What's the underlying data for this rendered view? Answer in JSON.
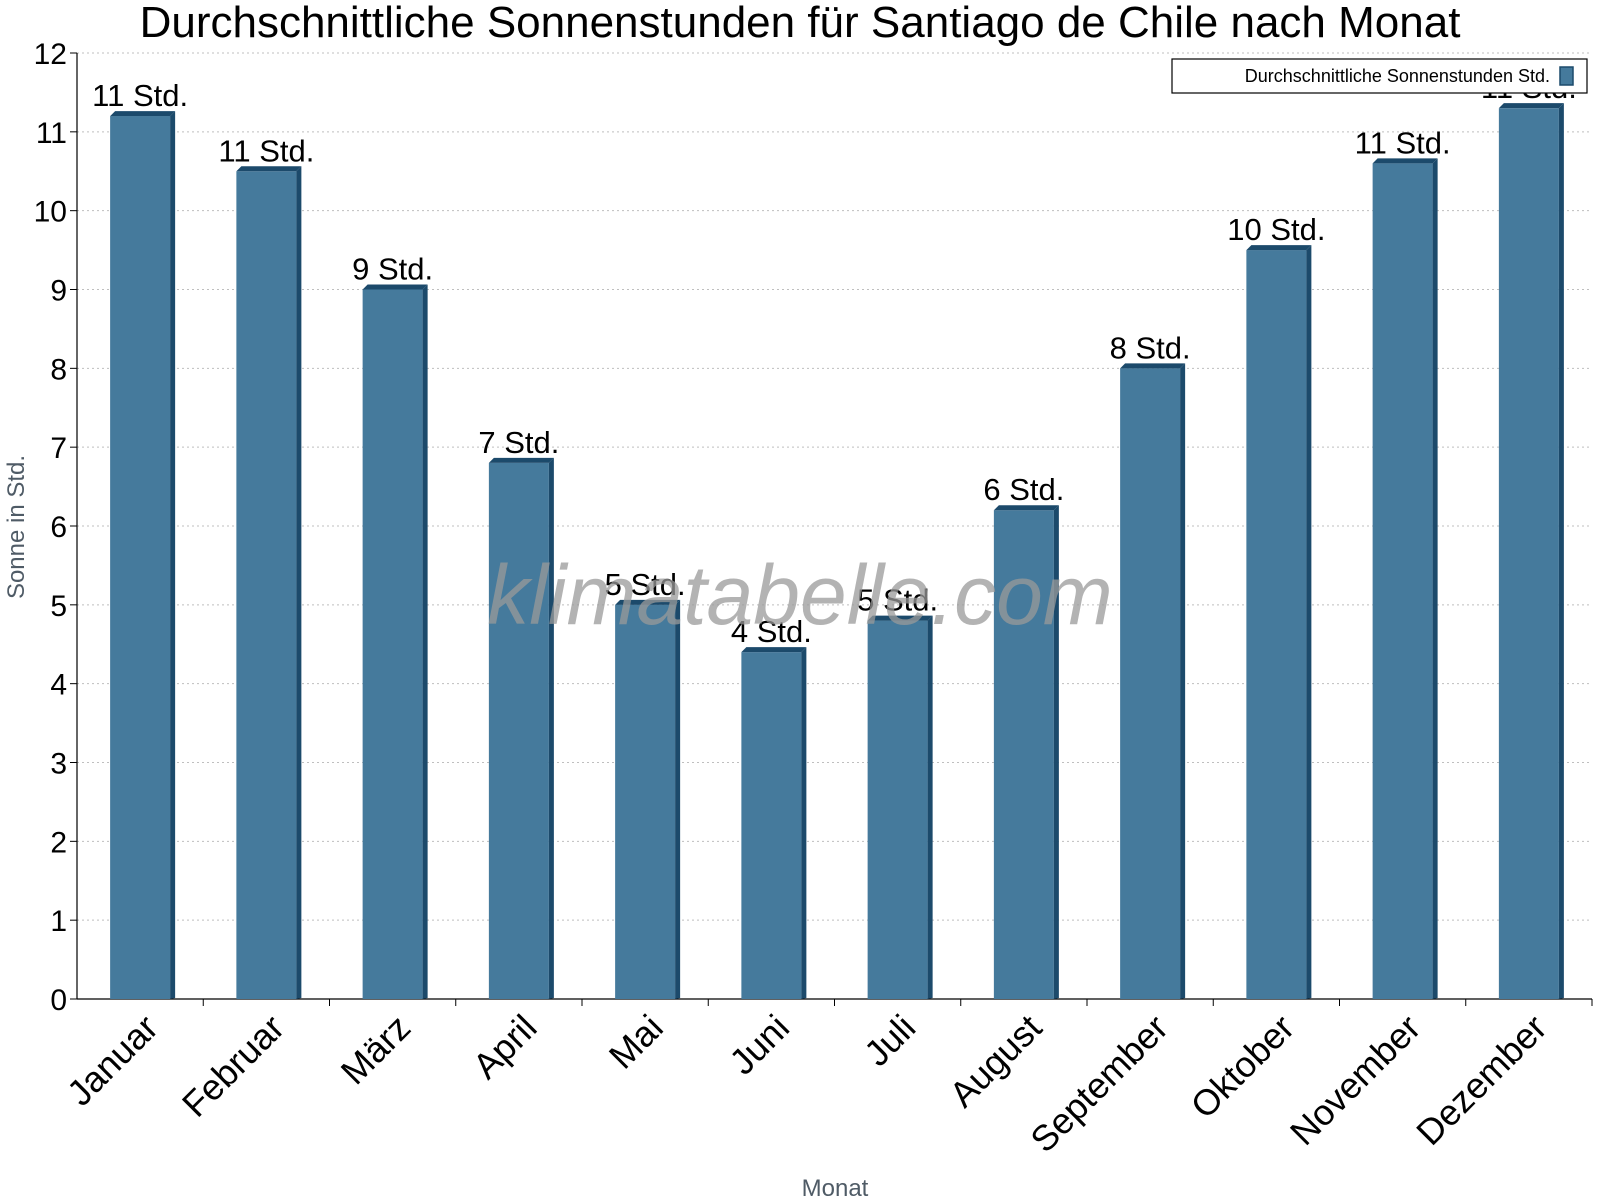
{
  "chart_data": {
    "type": "bar",
    "title": "Durchschnittliche Sonnenstunden für Santiago de Chile nach Monat",
    "xlabel": "Monat",
    "ylabel": "Sonne in Std.",
    "categories": [
      "Januar",
      "Februar",
      "März",
      "April",
      "Mai",
      "Juni",
      "Juli",
      "August",
      "September",
      "Oktober",
      "November",
      "Dezember"
    ],
    "series": [
      {
        "name": "Durchschnittliche Sonnenstunden Std.",
        "values": [
          11.2,
          10.5,
          9.0,
          6.8,
          5.0,
          4.4,
          4.8,
          6.2,
          8.0,
          9.5,
          10.6,
          11.3
        ],
        "labels": [
          "11 Std.",
          "11 Std.",
          "9 Std.",
          "7 Std.",
          "5 Std.",
          "4 Std.",
          "5 Std.",
          "6 Std.",
          "8 Std.",
          "10 Std.",
          "11 Std.",
          "11 Std."
        ]
      }
    ],
    "ylim": [
      0,
      12
    ],
    "yticks": [
      0,
      1,
      2,
      3,
      4,
      5,
      6,
      7,
      8,
      9,
      10,
      11,
      12
    ],
    "grid": true,
    "legend_position": "top-right",
    "colors": {
      "bar": "#457a9c",
      "bar_edge": "#1c4a6b",
      "grid": "#bfbfbf"
    },
    "watermark": "klimatabelle.com"
  }
}
